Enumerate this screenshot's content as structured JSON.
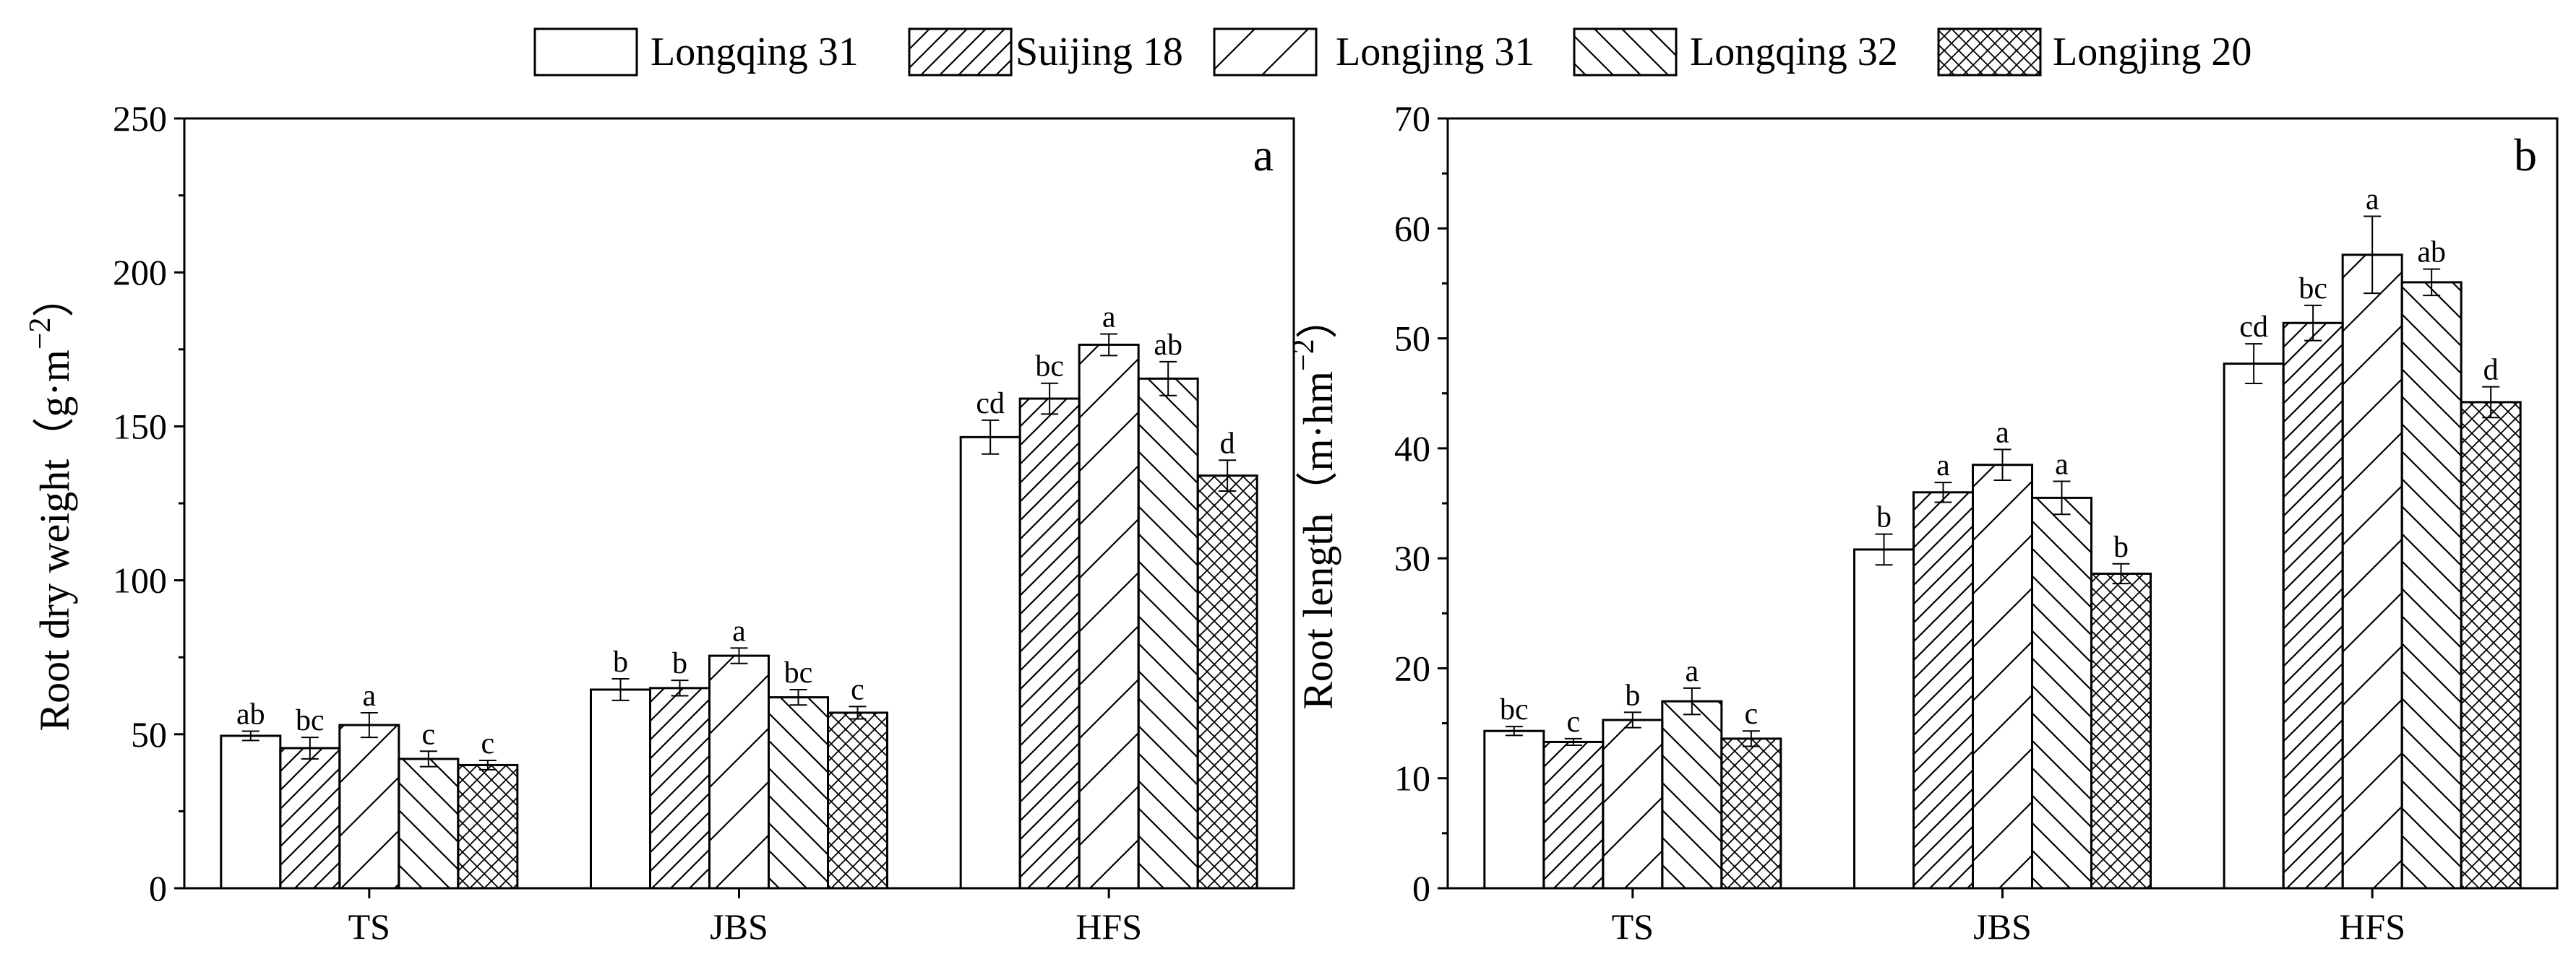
{
  "legend": {
    "items": [
      {
        "name": "Longqing 31",
        "pattern": "none"
      },
      {
        "name": "Suijing 18",
        "pattern": "diag-dense"
      },
      {
        "name": "Longjing 31",
        "pattern": "diag-sparse"
      },
      {
        "name": "Longqing 32",
        "pattern": "back-diag"
      },
      {
        "name": "Longjing 20",
        "pattern": "cross"
      }
    ]
  },
  "chart_data": [
    {
      "type": "bar",
      "panel": "a",
      "title": "",
      "ylabel": "Root dry weight（g·m",
      "ylabel_sup": "−2",
      "ylabel_tail": "）",
      "xlabel": "",
      "ylim": [
        0,
        250
      ],
      "yticks": [
        0,
        50,
        100,
        150,
        200,
        250
      ],
      "categories": [
        "TS",
        "JBS",
        "HFS"
      ],
      "series": [
        {
          "name": "Longqing 31",
          "values": [
            49.5,
            64.5,
            146.5
          ],
          "errors": [
            1.5,
            3.5,
            5.5
          ],
          "labels": [
            "ab",
            "b",
            "cd"
          ]
        },
        {
          "name": "Suijing 18",
          "values": [
            45.5,
            65,
            159
          ],
          "errors": [
            3.5,
            2.5,
            5
          ],
          "labels": [
            "bc",
            "b",
            "bc"
          ]
        },
        {
          "name": "Longjing 31",
          "values": [
            53,
            75.5,
            176.5
          ],
          "errors": [
            4,
            2.5,
            3.5
          ],
          "labels": [
            "a",
            "a",
            "a"
          ]
        },
        {
          "name": "Longqing 32",
          "values": [
            42,
            62,
            165.5
          ],
          "errors": [
            2.5,
            2.5,
            5.5
          ],
          "labels": [
            "c",
            "bc",
            "ab"
          ]
        },
        {
          "name": "Longjing 20",
          "values": [
            40,
            57,
            134
          ],
          "errors": [
            1.5,
            2,
            5
          ],
          "labels": [
            "c",
            "c",
            "d"
          ]
        }
      ]
    },
    {
      "type": "bar",
      "panel": "b",
      "title": "",
      "ylabel": "Root length（m·hm",
      "ylabel_sup": "−2",
      "ylabel_tail": "）",
      "xlabel": "",
      "ylim": [
        0,
        70
      ],
      "yticks": [
        0,
        10,
        20,
        30,
        40,
        50,
        60,
        70
      ],
      "categories": [
        "TS",
        "JBS",
        "HFS"
      ],
      "series": [
        {
          "name": "Longqing 31",
          "values": [
            14.3,
            30.8,
            47.7
          ],
          "errors": [
            0.4,
            1.4,
            1.8
          ],
          "labels": [
            "bc",
            "b",
            "cd"
          ]
        },
        {
          "name": "Suijing 18",
          "values": [
            13.3,
            36,
            51.4
          ],
          "errors": [
            0.3,
            0.9,
            1.6
          ],
          "labels": [
            "c",
            "a",
            "bc"
          ]
        },
        {
          "name": "Longjing 31",
          "values": [
            15.3,
            38.5,
            57.6
          ],
          "errors": [
            0.7,
            1.4,
            3.5
          ],
          "labels": [
            "b",
            "a",
            "a"
          ]
        },
        {
          "name": "Longqing 32",
          "values": [
            17,
            35.5,
            55.1
          ],
          "errors": [
            1.2,
            1.5,
            1.2
          ],
          "labels": [
            "a",
            "a",
            "ab"
          ]
        },
        {
          "name": "Longjing 20",
          "values": [
            13.6,
            28.6,
            44.2
          ],
          "errors": [
            0.7,
            0.9,
            1.4
          ],
          "labels": [
            "c",
            "b",
            "d"
          ]
        }
      ]
    }
  ]
}
